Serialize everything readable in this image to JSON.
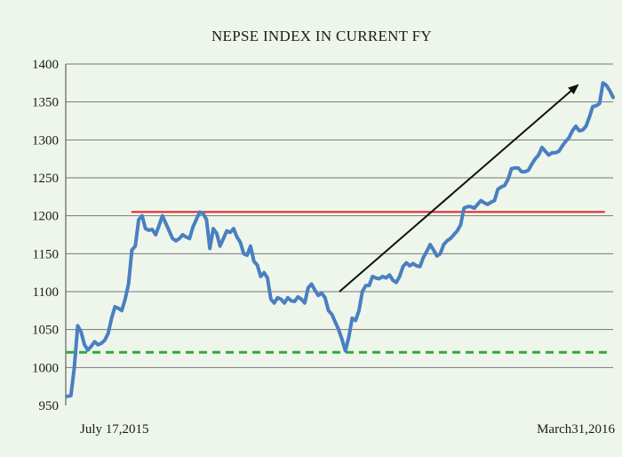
{
  "chart_data": {
    "type": "line",
    "title": "NEPSE INDEX IN CURRENT FY",
    "xlabel": "",
    "ylabel": "",
    "x_start_label": "July 17,2015",
    "x_end_label": "March31,2016",
    "ylim": [
      950,
      1400
    ],
    "yticks": [
      950,
      1000,
      1050,
      1100,
      1150,
      1200,
      1250,
      1300,
      1350,
      1400
    ],
    "grid": "horizontal",
    "legend": "none",
    "series": [
      {
        "color": "#4a7fc1",
        "values": [
          962,
          963,
          1000,
          1055,
          1047,
          1030,
          1023,
          1028,
          1034,
          1030,
          1032,
          1036,
          1045,
          1065,
          1080,
          1078,
          1075,
          1090,
          1110,
          1155,
          1160,
          1195,
          1200,
          1183,
          1181,
          1182,
          1175,
          1187,
          1200,
          1190,
          1180,
          1170,
          1167,
          1170,
          1175,
          1172,
          1170,
          1185,
          1195,
          1205,
          1203,
          1195,
          1157,
          1183,
          1177,
          1160,
          1170,
          1180,
          1178,
          1183,
          1172,
          1165,
          1150,
          1148,
          1160,
          1140,
          1135,
          1120,
          1125,
          1118,
          1090,
          1085,
          1092,
          1090,
          1085,
          1092,
          1088,
          1087,
          1093,
          1090,
          1085,
          1105,
          1110,
          1102,
          1095,
          1098,
          1092,
          1075,
          1070,
          1060,
          1050,
          1037,
          1022,
          1040,
          1065,
          1062,
          1075,
          1100,
          1108,
          1108,
          1120,
          1118,
          1117,
          1120,
          1118,
          1122,
          1115,
          1112,
          1120,
          1133,
          1138,
          1134,
          1137,
          1134,
          1133,
          1145,
          1153,
          1162,
          1155,
          1147,
          1150,
          1162,
          1167,
          1170,
          1175,
          1180,
          1188,
          1210,
          1212,
          1212,
          1210,
          1215,
          1220,
          1217,
          1215,
          1218,
          1220,
          1235,
          1238,
          1240,
          1248,
          1262,
          1263,
          1263,
          1258,
          1258,
          1260,
          1268,
          1275,
          1280,
          1290,
          1285,
          1280,
          1283,
          1283,
          1285,
          1292,
          1298,
          1303,
          1312,
          1318,
          1312,
          1313,
          1318,
          1330,
          1344,
          1345,
          1348,
          1375,
          1372,
          1365,
          1356
        ]
      }
    ],
    "reference_lines": [
      {
        "value": 1205,
        "color": "#e02020",
        "style": "solid",
        "x_from": 0.12,
        "x_to": 0.985
      },
      {
        "value": 1020,
        "color": "#2eaa3a",
        "style": "dashed",
        "x_from": 0.0,
        "x_to": 0.995
      }
    ],
    "arrow": {
      "color": "#111111",
      "from": [
        0.5,
        1100
      ],
      "to": [
        0.935,
        1372
      ]
    }
  }
}
